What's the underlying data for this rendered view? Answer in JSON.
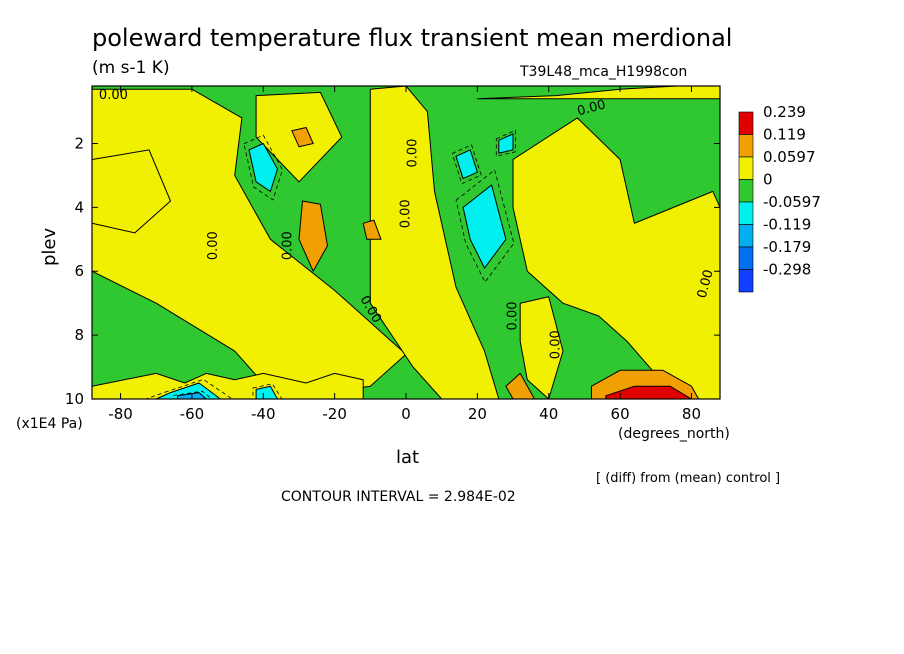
{
  "chart_data": {
    "type": "contour",
    "title": "poleward temperature flux transient mean merdional",
    "units": "(m s-1 K)",
    "run_label": "T39L48_mca_H1998con",
    "xlabel": "lat",
    "x_units": "(degrees_north)",
    "ylabel": "plev",
    "y_units": "(x1E4 Pa)",
    "x_ticks": [
      -80,
      -60,
      -40,
      -20,
      0,
      20,
      40,
      60,
      80
    ],
    "x_tick_labels": [
      "-80",
      "-60",
      "-40",
      "-20",
      "0",
      "20",
      "40",
      "60",
      "80"
    ],
    "y_ticks": [
      2,
      4,
      6,
      8,
      10
    ],
    "y_tick_labels": [
      "2",
      "4",
      "6",
      "8",
      "10"
    ],
    "xlim": [
      -88,
      88
    ],
    "ylim": [
      10,
      0.2
    ],
    "legend": {
      "position": "right",
      "levels": [
        "0.239",
        "0.119",
        "0.0597",
        "0",
        "-0.0597",
        "-0.119",
        "-0.179",
        "-0.298"
      ],
      "colors": [
        "#e00000",
        "#f0a000",
        "#f0f000",
        "#30c830",
        "#00f0f0",
        "#00b0f0",
        "#0070f0",
        "#1040ff"
      ]
    },
    "fill_colors": {
      "strong_pos": "#e00000",
      "pos2": "#f0a000",
      "pos1": "#f0f000",
      "neg1": "#30c830",
      "neg2": "#00f0f0",
      "neg3": "#00b0f0"
    },
    "contour_label_text": "0.00",
    "contour_labels": [
      {
        "lat": -82,
        "plev": 0.5,
        "rot": 0
      },
      {
        "lat": 52,
        "plev": 0.9,
        "rot": -15
      },
      {
        "lat": 2,
        "plev": 2.3,
        "rot": -90
      },
      {
        "lat": 0,
        "plev": 4.2,
        "rot": -90
      },
      {
        "lat": -54,
        "plev": 5.2,
        "rot": -90
      },
      {
        "lat": -33,
        "plev": 5.2,
        "rot": -90
      },
      {
        "lat": -10,
        "plev": 7.2,
        "rot": 60
      },
      {
        "lat": 30,
        "plev": 7.4,
        "rot": -90
      },
      {
        "lat": 42,
        "plev": 8.3,
        "rot": -90
      },
      {
        "lat": 84,
        "plev": 6.4,
        "rot": -75
      }
    ],
    "regions": [
      {
        "level": "pos1",
        "x": [
          -88,
          -60,
          -46,
          -48,
          -38,
          -20,
          -10,
          0,
          -10,
          -36,
          -48,
          -70,
          -88
        ],
        "y": [
          0.3,
          0.3,
          1.2,
          3.0,
          5.0,
          6.6,
          7.6,
          8.6,
          9.6,
          10.0,
          8.5,
          7.0,
          6.0
        ]
      },
      {
        "level": "pos1",
        "x": [
          -88,
          -72,
          -66,
          -76,
          -88
        ],
        "y": [
          2.5,
          2.2,
          3.8,
          4.8,
          4.5
        ]
      },
      {
        "level": "pos1",
        "x": [
          -42,
          -24,
          -18,
          -30,
          -42
        ],
        "y": [
          0.5,
          0.4,
          1.8,
          3.2,
          1.8
        ]
      },
      {
        "level": "pos1",
        "x": [
          -10,
          0,
          6,
          8,
          14,
          22,
          26,
          10,
          2,
          -10
        ],
        "y": [
          0.3,
          0.2,
          1.0,
          3.5,
          6.5,
          8.5,
          10.0,
          10.0,
          9.0,
          7.0
        ]
      },
      {
        "level": "pos1",
        "x": [
          30,
          48,
          60,
          64,
          86,
          88,
          88,
          76,
          62,
          54,
          44,
          34,
          30
        ],
        "y": [
          2.5,
          1.2,
          2.5,
          4.5,
          3.5,
          4.0,
          10.0,
          10.0,
          8.2,
          7.4,
          7.0,
          6.0,
          4.0
        ]
      },
      {
        "level": "pos1",
        "x": [
          20,
          42,
          60,
          76,
          88,
          88,
          20
        ],
        "y": [
          0.6,
          0.5,
          0.3,
          0.2,
          0.2,
          0.6,
          0.6
        ]
      },
      {
        "level": "pos1",
        "x": [
          -88,
          -70,
          -62,
          -56,
          -48,
          -40,
          -28,
          -20,
          -12,
          -12,
          -88
        ],
        "y": [
          9.6,
          9.2,
          9.5,
          9.2,
          9.4,
          9.2,
          9.5,
          9.2,
          9.4,
          10.0,
          10.0
        ]
      },
      {
        "level": "pos1",
        "x": [
          32,
          40,
          44,
          40,
          34,
          32
        ],
        "y": [
          7.0,
          6.8,
          8.5,
          10.0,
          9.4,
          8.2
        ]
      },
      {
        "level": "pos2",
        "x": [
          -32,
          -28,
          -26,
          -30
        ],
        "y": [
          1.6,
          1.5,
          2.0,
          2.1
        ]
      },
      {
        "level": "pos2",
        "x": [
          -29,
          -24,
          -22,
          -26,
          -30
        ],
        "y": [
          3.8,
          3.9,
          5.2,
          6.0,
          5.0
        ]
      },
      {
        "level": "pos2",
        "x": [
          -12,
          -9,
          -7,
          -11
        ],
        "y": [
          4.5,
          4.4,
          5.0,
          5.0
        ]
      },
      {
        "level": "pos2",
        "x": [
          52,
          60,
          72,
          80,
          82,
          52
        ],
        "y": [
          9.6,
          9.1,
          9.1,
          9.6,
          10.0,
          10.0
        ]
      },
      {
        "level": "pos2",
        "x": [
          28,
          32,
          36,
          30
        ],
        "y": [
          9.6,
          9.2,
          10.0,
          10.0
        ]
      },
      {
        "level": "strong_pos",
        "x": [
          56,
          64,
          74,
          80,
          56
        ],
        "y": [
          9.9,
          9.6,
          9.6,
          10.0,
          10.0
        ]
      },
      {
        "level": "neg2",
        "x": [
          -44,
          -40,
          -36,
          -38,
          -42
        ],
        "y": [
          2.2,
          2.0,
          2.8,
          3.5,
          3.2
        ]
      },
      {
        "level": "neg2",
        "x": [
          16,
          24,
          28,
          22,
          18
        ],
        "y": [
          4.0,
          3.3,
          5.0,
          5.9,
          5.0
        ]
      },
      {
        "level": "neg2",
        "x": [
          14,
          18,
          20,
          16
        ],
        "y": [
          2.4,
          2.2,
          2.9,
          3.1
        ]
      },
      {
        "level": "neg2",
        "x": [
          26,
          30,
          30,
          26
        ],
        "y": [
          1.9,
          1.7,
          2.2,
          2.3
        ]
      },
      {
        "level": "neg2",
        "x": [
          -66,
          -58,
          -52,
          -70
        ],
        "y": [
          9.8,
          9.5,
          10.0,
          10.0
        ]
      },
      {
        "level": "neg2",
        "x": [
          -42,
          -38,
          -36,
          -42
        ],
        "y": [
          9.7,
          9.6,
          10.0,
          10.0
        ]
      },
      {
        "level": "neg3",
        "x": [
          -64,
          -58,
          -56,
          -64
        ],
        "y": [
          9.9,
          9.8,
          10.0,
          10.0
        ]
      }
    ]
  },
  "annotations": {
    "diff_note": "[ (diff) from (mean) control ]",
    "contour_interval": "CONTOUR INTERVAL = 2.984E-02"
  }
}
